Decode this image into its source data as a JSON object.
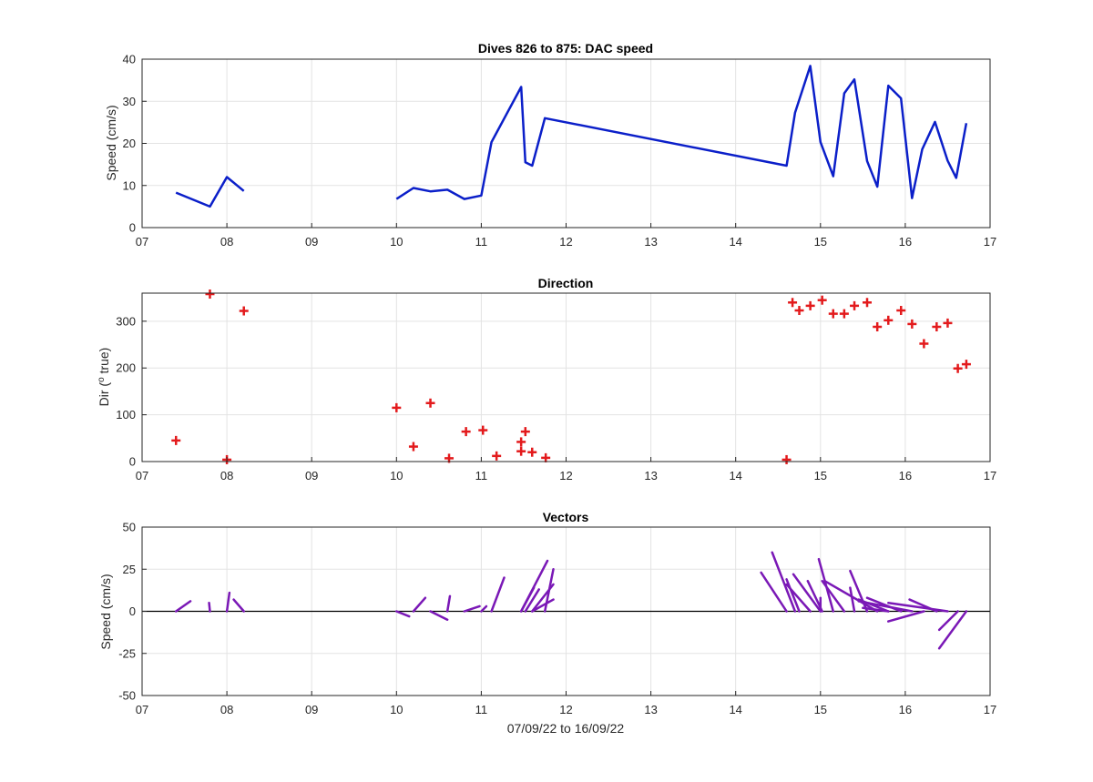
{
  "figure": {
    "xlabel": "07/09/22 to 16/09/22",
    "x_ticks": [
      "07",
      "08",
      "09",
      "10",
      "11",
      "12",
      "13",
      "14",
      "15",
      "16",
      "17"
    ]
  },
  "colors": {
    "speed_line": "#0b1fc9",
    "direction_marker": "#e31a1c",
    "vector_line": "#7a18b6",
    "grid": "#e3e3e3",
    "axes": "#262626"
  },
  "chart_data": [
    {
      "id": "speed",
      "type": "line",
      "title": "Dives 826 to 875: DAC speed",
      "xlabel": "",
      "ylabel": "Speed (cm/s)",
      "xlim": [
        7,
        17
      ],
      "ylim": [
        0,
        40
      ],
      "y_ticks": [
        0,
        10,
        20,
        30,
        40
      ],
      "grid": true,
      "series": [
        {
          "segments": [
            [
              [
                7.4,
                8.3
              ],
              [
                7.8,
                5.0
              ],
              [
                8.0,
                12.0
              ],
              [
                8.2,
                8.7
              ]
            ],
            [
              [
                10.0,
                6.8
              ],
              [
                10.2,
                9.4
              ],
              [
                10.4,
                8.6
              ],
              [
                10.6,
                9.0
              ],
              [
                10.8,
                6.8
              ],
              [
                11.0,
                7.6
              ],
              [
                11.12,
                20.3
              ],
              [
                11.47,
                33.4
              ],
              [
                11.52,
                15.5
              ],
              [
                11.6,
                14.7
              ],
              [
                11.75,
                26.0
              ],
              [
                14.6,
                14.7
              ],
              [
                14.7,
                27.3
              ],
              [
                14.88,
                38.4
              ],
              [
                15.0,
                20.3
              ],
              [
                15.15,
                12.2
              ],
              [
                15.28,
                31.9
              ],
              [
                15.4,
                35.2
              ],
              [
                15.55,
                15.8
              ],
              [
                15.67,
                9.7
              ],
              [
                15.8,
                33.7
              ],
              [
                15.95,
                30.7
              ],
              [
                16.08,
                7.0
              ],
              [
                16.2,
                18.6
              ],
              [
                16.35,
                25.1
              ],
              [
                16.5,
                15.9
              ],
              [
                16.6,
                11.8
              ],
              [
                16.72,
                24.8
              ]
            ]
          ]
        }
      ]
    },
    {
      "id": "direction",
      "type": "scatter",
      "title": "Direction",
      "xlabel": "",
      "ylabel": "Dir (o true)",
      "ylabel_parts": {
        "before": "Dir (",
        "sup": "o",
        "after": " true)"
      },
      "xlim": [
        7,
        17
      ],
      "ylim": [
        0,
        360
      ],
      "y_ticks": [
        0,
        100,
        200,
        300
      ],
      "grid": true,
      "marker": "+",
      "points": [
        [
          7.4,
          45
        ],
        [
          7.8,
          358
        ],
        [
          8.0,
          4
        ],
        [
          8.2,
          322
        ],
        [
          10.0,
          115
        ],
        [
          10.2,
          32
        ],
        [
          10.4,
          125
        ],
        [
          10.62,
          7
        ],
        [
          10.82,
          64
        ],
        [
          11.02,
          67
        ],
        [
          11.18,
          12
        ],
        [
          11.47,
          22
        ],
        [
          11.47,
          42
        ],
        [
          11.52,
          64
        ],
        [
          11.6,
          20
        ],
        [
          11.76,
          8
        ],
        [
          14.6,
          4
        ],
        [
          14.67,
          340
        ],
        [
          14.75,
          323
        ],
        [
          14.88,
          333
        ],
        [
          15.02,
          345
        ],
        [
          15.15,
          316
        ],
        [
          15.28,
          316
        ],
        [
          15.4,
          333
        ],
        [
          15.55,
          340
        ],
        [
          15.67,
          288
        ],
        [
          15.8,
          302
        ],
        [
          15.95,
          323
        ],
        [
          16.08,
          294
        ],
        [
          16.22,
          252
        ],
        [
          16.37,
          288
        ],
        [
          16.5,
          296
        ],
        [
          16.62,
          199
        ],
        [
          16.72,
          208
        ]
      ]
    },
    {
      "id": "vectors",
      "type": "line",
      "title": "Vectors",
      "xlabel": "07/09/22 to 16/09/22",
      "ylabel": "Speed (cm/s)",
      "xlim": [
        7,
        17
      ],
      "ylim": [
        -50,
        50
      ],
      "y_ticks": [
        -50,
        -25,
        0,
        25,
        50
      ],
      "grid": true,
      "zero_line": true,
      "vectors": [
        [
          7.4,
          0,
          7.57,
          6
        ],
        [
          7.8,
          0,
          7.79,
          5
        ],
        [
          8.0,
          0,
          8.03,
          11
        ],
        [
          8.2,
          0,
          8.08,
          7
        ],
        [
          10.0,
          0,
          10.15,
          -3
        ],
        [
          10.2,
          0,
          10.34,
          8
        ],
        [
          10.4,
          0,
          10.6,
          -5
        ],
        [
          10.6,
          0,
          10.63,
          9
        ],
        [
          10.8,
          0,
          10.98,
          3
        ],
        [
          11.0,
          0,
          11.06,
          3
        ],
        [
          11.12,
          0,
          11.27,
          20
        ],
        [
          11.47,
          0,
          11.78,
          30
        ],
        [
          11.47,
          0,
          11.62,
          14
        ],
        [
          11.52,
          0,
          11.68,
          13
        ],
        [
          11.6,
          0,
          11.85,
          16
        ],
        [
          11.75,
          0,
          11.85,
          25
        ],
        [
          11.6,
          0,
          11.85,
          7
        ],
        [
          14.6,
          0,
          14.3,
          23
        ],
        [
          14.7,
          0,
          14.43,
          35
        ],
        [
          14.88,
          0,
          14.6,
          16
        ],
        [
          14.75,
          0,
          14.6,
          19
        ],
        [
          15.0,
          0,
          14.68,
          22
        ],
        [
          15.0,
          0,
          15.0,
          8
        ],
        [
          15.02,
          0,
          14.85,
          18
        ],
        [
          15.15,
          0,
          14.98,
          31
        ],
        [
          15.28,
          0,
          15.02,
          18
        ],
        [
          15.4,
          0,
          15.35,
          14
        ],
        [
          15.55,
          0,
          15.35,
          24
        ],
        [
          15.67,
          0,
          15.05,
          18
        ],
        [
          15.8,
          0,
          15.45,
          7
        ],
        [
          15.95,
          0,
          15.55,
          8
        ],
        [
          15.8,
          0,
          15.5,
          2
        ],
        [
          16.08,
          0,
          15.45,
          6
        ],
        [
          16.22,
          0,
          15.8,
          -6
        ],
        [
          16.37,
          0,
          16.05,
          7
        ],
        [
          16.5,
          0,
          15.8,
          5
        ],
        [
          16.62,
          0,
          16.4,
          -11
        ],
        [
          16.72,
          0,
          16.4,
          -22
        ]
      ]
    }
  ]
}
